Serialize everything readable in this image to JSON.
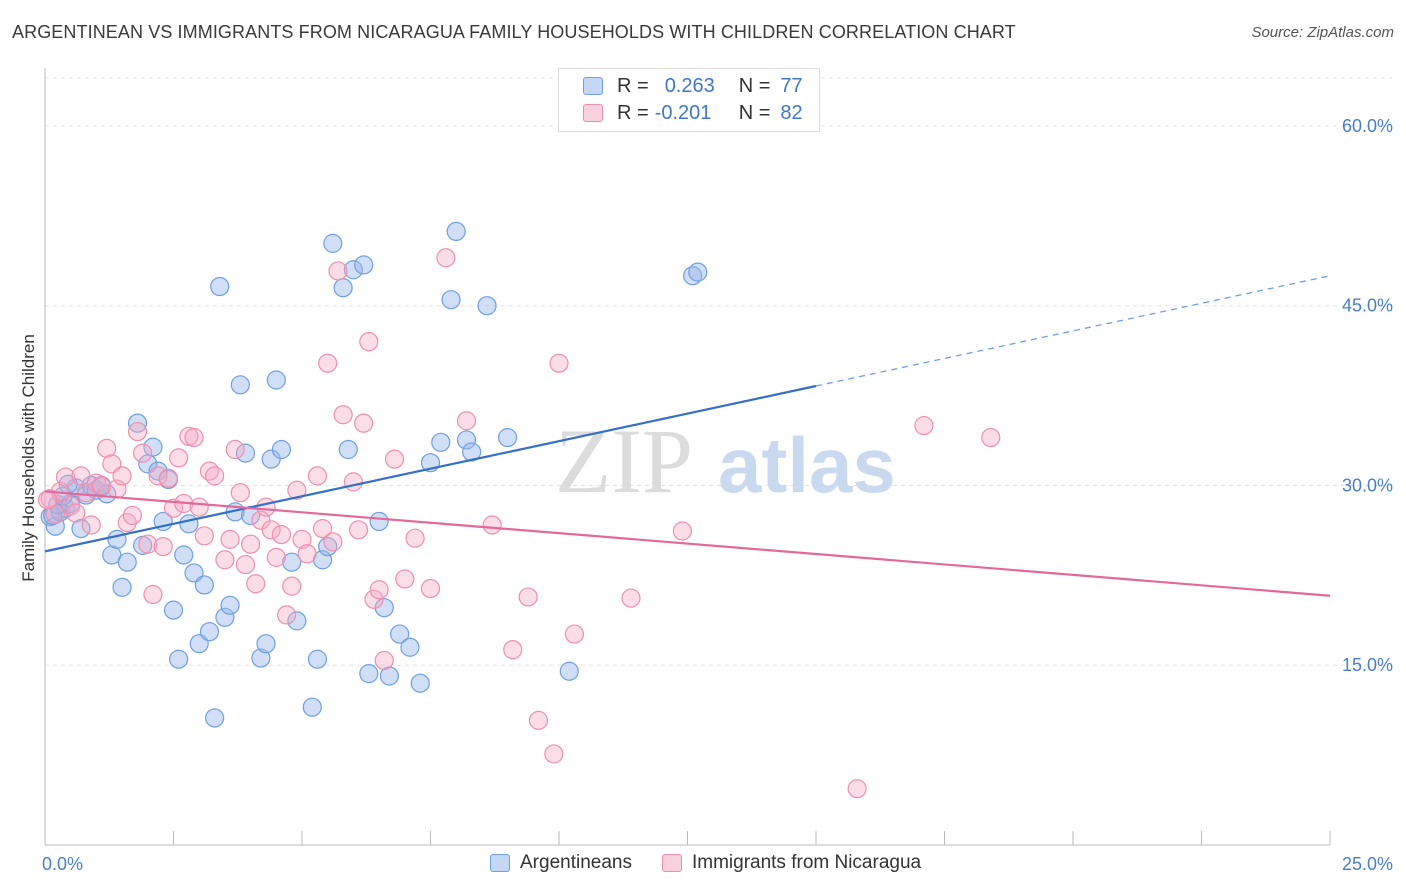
{
  "title": "ARGENTINEAN VS IMMIGRANTS FROM NICARAGUA FAMILY HOUSEHOLDS WITH CHILDREN CORRELATION CHART",
  "source": "Source: ZipAtlas.com",
  "watermark": {
    "zip": "ZIP",
    "atlas": "atlas"
  },
  "legend": {
    "rows": [
      {
        "r_label": "R =",
        "r_value": "0.263",
        "n_label": "N =",
        "n_value": "77",
        "color": "#6f9fe0"
      },
      {
        "r_label": "R =",
        "r_value": "-0.201",
        "n_label": "N =",
        "n_value": "82",
        "color": "#ee8fb0"
      }
    ]
  },
  "bottom_legend": [
    {
      "label": "Argentineans",
      "color": "#6f9fe0"
    },
    {
      "label": "Immigrants from Nicaragua",
      "color": "#ee8fb0"
    }
  ],
  "chart_data": {
    "type": "scatter",
    "ylabel": "Family Households with Children",
    "xlim": [
      0,
      25
    ],
    "ylim": [
      0,
      60
    ],
    "x_tick_labels": [
      "0.0%",
      "25.0%"
    ],
    "y_ticks": [
      15,
      30,
      45,
      60
    ],
    "y_tick_labels": [
      "15.0%",
      "30.0%",
      "45.0%",
      "60.0%"
    ],
    "grid": true,
    "series": [
      {
        "name": "Argentineans",
        "color": "#6f9fe0",
        "trend": {
          "x0": 0,
          "y0": 24.5,
          "x1": 15,
          "y1": 38.3,
          "dashed_to_x": 25,
          "dashed_to_y": 47.5
        },
        "points": [
          [
            0.1,
            27.4
          ],
          [
            0.2,
            26.6
          ],
          [
            0.3,
            27.8
          ],
          [
            0.4,
            28.1
          ],
          [
            0.5,
            28.5
          ],
          [
            0.6,
            29.8
          ],
          [
            0.7,
            26.4
          ],
          [
            0.8,
            29.2
          ],
          [
            0.9,
            30.0
          ],
          [
            1.0,
            29.6
          ],
          [
            1.1,
            29.9
          ],
          [
            1.2,
            29.3
          ],
          [
            1.3,
            24.2
          ],
          [
            1.4,
            25.5
          ],
          [
            1.5,
            21.5
          ],
          [
            1.6,
            23.6
          ],
          [
            1.8,
            35.2
          ],
          [
            1.9,
            25.0
          ],
          [
            2.0,
            31.8
          ],
          [
            2.1,
            33.2
          ],
          [
            2.2,
            31.2
          ],
          [
            2.3,
            27.0
          ],
          [
            2.4,
            30.5
          ],
          [
            2.5,
            19.6
          ],
          [
            2.6,
            15.5
          ],
          [
            2.7,
            24.2
          ],
          [
            2.8,
            26.8
          ],
          [
            2.9,
            22.7
          ],
          [
            3.0,
            16.8
          ],
          [
            3.1,
            21.7
          ],
          [
            3.2,
            17.8
          ],
          [
            3.3,
            10.6
          ],
          [
            3.4,
            46.6
          ],
          [
            3.5,
            19.0
          ],
          [
            3.6,
            20.0
          ],
          [
            3.7,
            27.8
          ],
          [
            3.8,
            38.4
          ],
          [
            3.9,
            32.7
          ],
          [
            4.0,
            27.5
          ],
          [
            4.2,
            15.6
          ],
          [
            4.3,
            16.8
          ],
          [
            4.4,
            32.2
          ],
          [
            4.5,
            38.8
          ],
          [
            4.6,
            33.0
          ],
          [
            4.8,
            23.6
          ],
          [
            4.9,
            18.7
          ],
          [
            5.2,
            11.5
          ],
          [
            5.3,
            15.5
          ],
          [
            5.4,
            23.8
          ],
          [
            5.5,
            24.9
          ],
          [
            5.6,
            50.2
          ],
          [
            5.8,
            46.5
          ],
          [
            5.9,
            33.0
          ],
          [
            6.0,
            48.0
          ],
          [
            6.2,
            48.4
          ],
          [
            6.3,
            14.3
          ],
          [
            6.5,
            27.0
          ],
          [
            6.6,
            19.8
          ],
          [
            6.7,
            14.1
          ],
          [
            6.9,
            17.6
          ],
          [
            7.1,
            16.5
          ],
          [
            7.3,
            13.5
          ],
          [
            7.5,
            31.9
          ],
          [
            7.7,
            33.6
          ],
          [
            7.9,
            45.5
          ],
          [
            8.0,
            51.2
          ],
          [
            8.2,
            33.8
          ],
          [
            8.3,
            32.8
          ],
          [
            8.6,
            45.0
          ],
          [
            9.0,
            34.0
          ],
          [
            10.2,
            14.5
          ],
          [
            12.6,
            47.5
          ],
          [
            12.7,
            47.8
          ],
          [
            0.15,
            27.5
          ],
          [
            0.25,
            28.4
          ],
          [
            0.35,
            29.1
          ],
          [
            0.45,
            30.1
          ]
        ]
      },
      {
        "name": "Immigrants from Nicaragua",
        "color": "#ee8fb0",
        "trend": {
          "x0": 0,
          "y0": 29.5,
          "x1": 25,
          "y1": 20.8
        },
        "points": [
          [
            0.1,
            28.9
          ],
          [
            0.2,
            27.6
          ],
          [
            0.3,
            29.5
          ],
          [
            0.4,
            30.7
          ],
          [
            0.5,
            28.3
          ],
          [
            0.6,
            27.7
          ],
          [
            0.7,
            30.8
          ],
          [
            0.8,
            29.4
          ],
          [
            0.9,
            26.7
          ],
          [
            1.0,
            30.2
          ],
          [
            1.1,
            30.0
          ],
          [
            1.2,
            33.1
          ],
          [
            1.3,
            31.8
          ],
          [
            1.4,
            29.7
          ],
          [
            1.5,
            30.8
          ],
          [
            1.6,
            26.9
          ],
          [
            1.7,
            27.5
          ],
          [
            1.8,
            34.5
          ],
          [
            1.9,
            32.7
          ],
          [
            2.0,
            25.1
          ],
          [
            2.1,
            20.9
          ],
          [
            2.2,
            30.8
          ],
          [
            2.3,
            24.9
          ],
          [
            2.4,
            30.6
          ],
          [
            2.5,
            28.1
          ],
          [
            2.6,
            32.3
          ],
          [
            2.7,
            28.5
          ],
          [
            2.8,
            34.1
          ],
          [
            2.9,
            34.0
          ],
          [
            3.0,
            28.2
          ],
          [
            3.1,
            25.8
          ],
          [
            3.2,
            31.2
          ],
          [
            3.3,
            30.8
          ],
          [
            3.5,
            23.8
          ],
          [
            3.6,
            25.5
          ],
          [
            3.7,
            33.0
          ],
          [
            3.8,
            29.4
          ],
          [
            3.9,
            23.4
          ],
          [
            4.0,
            25.1
          ],
          [
            4.1,
            21.8
          ],
          [
            4.2,
            27.1
          ],
          [
            4.3,
            28.2
          ],
          [
            4.4,
            26.3
          ],
          [
            4.5,
            24.0
          ],
          [
            4.6,
            25.9
          ],
          [
            4.7,
            19.2
          ],
          [
            4.8,
            21.6
          ],
          [
            4.9,
            29.6
          ],
          [
            5.0,
            25.5
          ],
          [
            5.1,
            24.3
          ],
          [
            5.3,
            30.8
          ],
          [
            5.4,
            26.4
          ],
          [
            5.5,
            40.2
          ],
          [
            5.6,
            25.3
          ],
          [
            5.7,
            47.9
          ],
          [
            5.8,
            35.9
          ],
          [
            6.0,
            30.3
          ],
          [
            6.1,
            26.3
          ],
          [
            6.2,
            35.2
          ],
          [
            6.3,
            42.0
          ],
          [
            6.4,
            20.5
          ],
          [
            6.5,
            21.3
          ],
          [
            6.6,
            15.4
          ],
          [
            6.8,
            32.2
          ],
          [
            7.0,
            22.2
          ],
          [
            7.2,
            25.6
          ],
          [
            7.5,
            21.4
          ],
          [
            7.8,
            49.0
          ],
          [
            8.2,
            35.4
          ],
          [
            8.7,
            26.7
          ],
          [
            9.1,
            16.3
          ],
          [
            9.4,
            20.7
          ],
          [
            9.6,
            10.4
          ],
          [
            9.9,
            7.6
          ],
          [
            10.0,
            40.2
          ],
          [
            10.3,
            17.6
          ],
          [
            11.4,
            20.6
          ],
          [
            12.4,
            26.2
          ],
          [
            15.8,
            4.7
          ],
          [
            17.1,
            35.0
          ],
          [
            18.4,
            34.0
          ],
          [
            0.05,
            28.8
          ]
        ]
      }
    ]
  }
}
